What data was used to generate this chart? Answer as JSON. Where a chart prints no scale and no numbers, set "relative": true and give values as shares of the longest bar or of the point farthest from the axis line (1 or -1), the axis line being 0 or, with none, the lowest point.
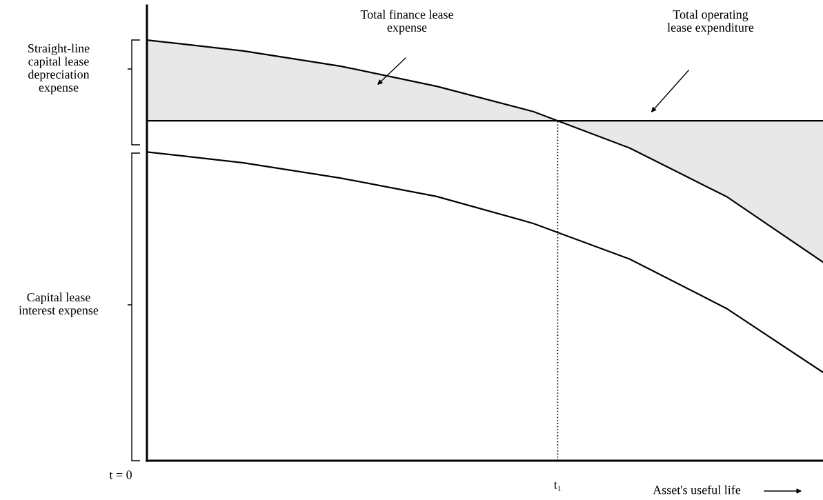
{
  "chart_data": {
    "type": "line",
    "relative": true,
    "xlabel": "Asset's useful life",
    "categories": [
      null,
      null,
      null,
      null,
      null,
      null,
      null,
      null
    ],
    "series": [
      {
        "color": "#000000",
        "values": [
          1.0,
          0.974,
          0.938,
          0.89,
          0.83,
          0.743,
          0.628,
          0.472
        ]
      },
      {
        "color": "#000000",
        "values": [
          0.808,
          0.808,
          0.808,
          0.808,
          0.808,
          0.808,
          0.808,
          0.808
        ],
        "lower": [
          0.808,
          0.808,
          0.808,
          0.808,
          0.808,
          0.808,
          0.808,
          0.808
        ],
        "upper": [
          1.0,
          0.974,
          0.938,
          0.89,
          0.83,
          0.743,
          0.628,
          0.472
        ]
      },
      {
        "color": "#000000",
        "values": [
          0.734,
          0.708,
          0.672,
          0.628,
          0.564,
          0.479,
          0.362,
          0.21
        ]
      }
    ],
    "annotations": [
      "t = 0",
      "t₁",
      "Total finance lease expense",
      "Total operating lease expenditure",
      "Straight-line capital lease depreciation expense",
      "Capital lease interest expense"
    ],
    "grid": false,
    "legend": false,
    "marker": "none",
    "line_style": "solid"
  }
}
